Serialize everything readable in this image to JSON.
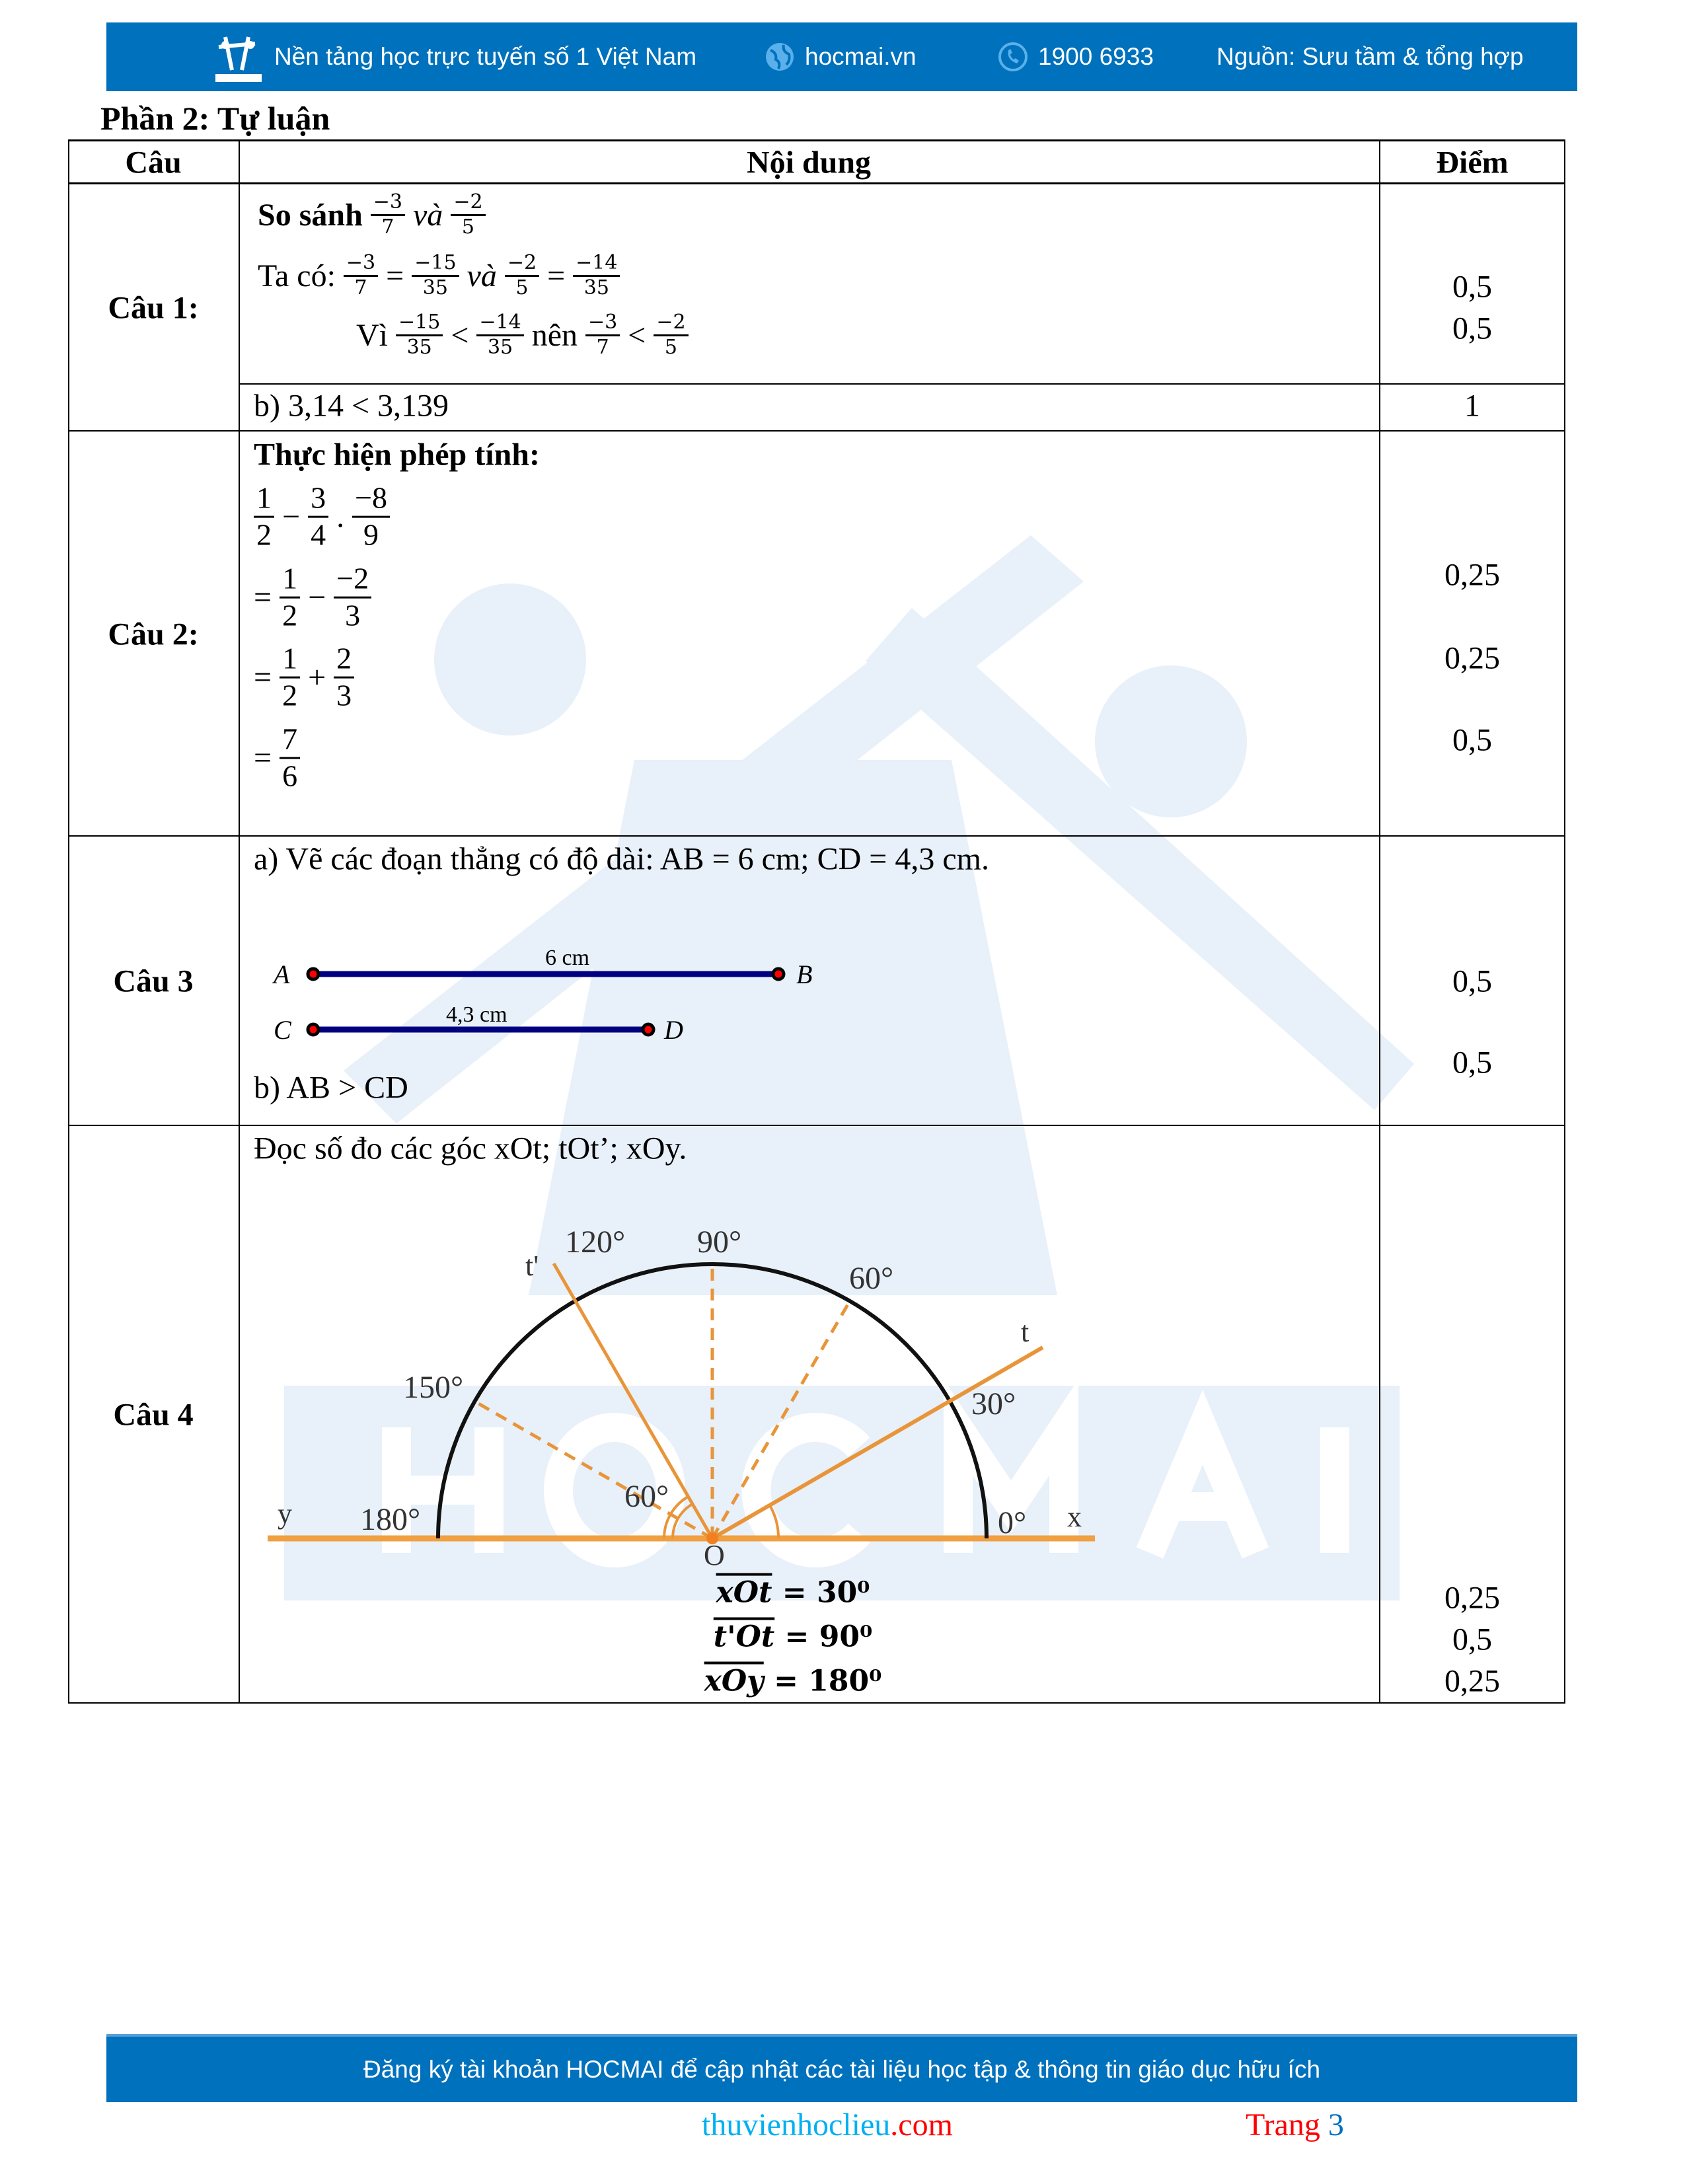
{
  "header": {
    "logo_text": "HOCMAI",
    "slogan": "Nền tảng học trực tuyến số 1 Việt Nam",
    "website": "hocmai.vn",
    "phone": "1900 6933",
    "source": "Nguồn: Sưu tầm & tổng hợp",
    "icons": [
      "hocmai-logo-icon",
      "globe-icon",
      "phone-icon"
    ],
    "bg_color": "#0071bc"
  },
  "section_title": "Phần 2: Tự luận",
  "table": {
    "headers": [
      "Câu",
      "Nội dung",
      "Điểm"
    ],
    "q1": {
      "label": "Câu 1:",
      "lines": [
        [
          {
            "t": "So sánh",
            "b": true
          },
          {
            "n": "−3",
            "d": "7"
          },
          {
            "t": "và",
            "i": true
          },
          {
            "n": "−2",
            "d": "5"
          }
        ],
        [
          {
            "t": "Ta có:"
          },
          {
            "n": "−3",
            "d": "7"
          },
          {
            "t": "="
          },
          {
            "n": "−15",
            "d": "35"
          },
          {
            "t": "và",
            "i": true
          },
          {
            "n": "−2",
            "d": "5"
          },
          {
            "t": "="
          },
          {
            "n": "−14",
            "d": "35"
          }
        ],
        [
          {
            "t": "Vì"
          },
          {
            "n": "−15",
            "d": "35"
          },
          {
            "t": "<"
          },
          {
            "n": "−14",
            "d": "35"
          },
          {
            "t": "nên"
          },
          {
            "n": "−3",
            "d": "7"
          },
          {
            "t": "<"
          },
          {
            "n": "−2",
            "d": "5"
          }
        ]
      ],
      "points": [
        "0,5",
        "0,5"
      ],
      "b_text": "b) 3,14 < 3,139",
      "b_points": "1"
    },
    "q2": {
      "label": "Câu 2:",
      "heading": "Thực hiện phép tính:",
      "lines": [
        [
          {
            "n": "1",
            "d": "2"
          },
          {
            "t": "−"
          },
          {
            "n": "3",
            "d": "4"
          },
          {
            "t": "."
          },
          {
            "n": "−8",
            "d": "9"
          }
        ],
        [
          {
            "t": "="
          },
          {
            "n": "1",
            "d": "2"
          },
          {
            "t": "−"
          },
          {
            "n": "−2",
            "d": "3"
          }
        ],
        [
          {
            "t": "="
          },
          {
            "n": "1",
            "d": "2"
          },
          {
            "t": "+"
          },
          {
            "n": "2",
            "d": "3"
          }
        ],
        [
          {
            "t": "="
          },
          {
            "n": "7",
            "d": "6"
          }
        ]
      ],
      "points": [
        "0,25",
        "0,25",
        "0,5"
      ]
    },
    "q3": {
      "label": "Câu 3",
      "a_text": "a) Vẽ các đoạn thẳng có độ dài: AB = 6 cm; CD = 4,3 cm.",
      "segments": [
        {
          "start": "A",
          "end": "B",
          "length_label": "6 cm",
          "length_cm": 6
        },
        {
          "start": "C",
          "end": "D",
          "length_label": "4,3 cm",
          "length_cm": 4.3
        }
      ],
      "segment_color": "#000080",
      "point_color": "#ff0000",
      "b_text": "b) AB > CD",
      "points": [
        "0,5",
        "0,5"
      ]
    },
    "q4": {
      "label": "Câu 4",
      "prompt": "Đọc số đo các góc xOt; tOt’; xOy.",
      "diagram": {
        "tick_labels": [
          "0°",
          "30°",
          "60°",
          "90°",
          "120°",
          "150°",
          "180°"
        ],
        "ray_labels": {
          "x": "x",
          "y": "y",
          "t": "t",
          "t_prime": "t'",
          "origin": "O"
        },
        "angle_label": "60°",
        "ray_t_deg": 30,
        "ray_t_prime_deg": 120,
        "line_color": "#f0a040"
      },
      "results": [
        {
          "angle": "xOt",
          "value": "= 30⁰"
        },
        {
          "angle": "t'Ot",
          "value": "= 90⁰"
        },
        {
          "angle": "xOy",
          "value": "= 180⁰"
        }
      ],
      "points": [
        "0,25",
        "0,5",
        "0,25"
      ]
    }
  },
  "footer": {
    "text": "Đăng ký tài khoản HOCMAI để cập nhật các tài liệu học tập & thông tin giáo dục hữu ích",
    "site_a": "thuvienhoclieu",
    "site_b": ".com",
    "page_word": "Trang",
    "page_num": "3"
  }
}
